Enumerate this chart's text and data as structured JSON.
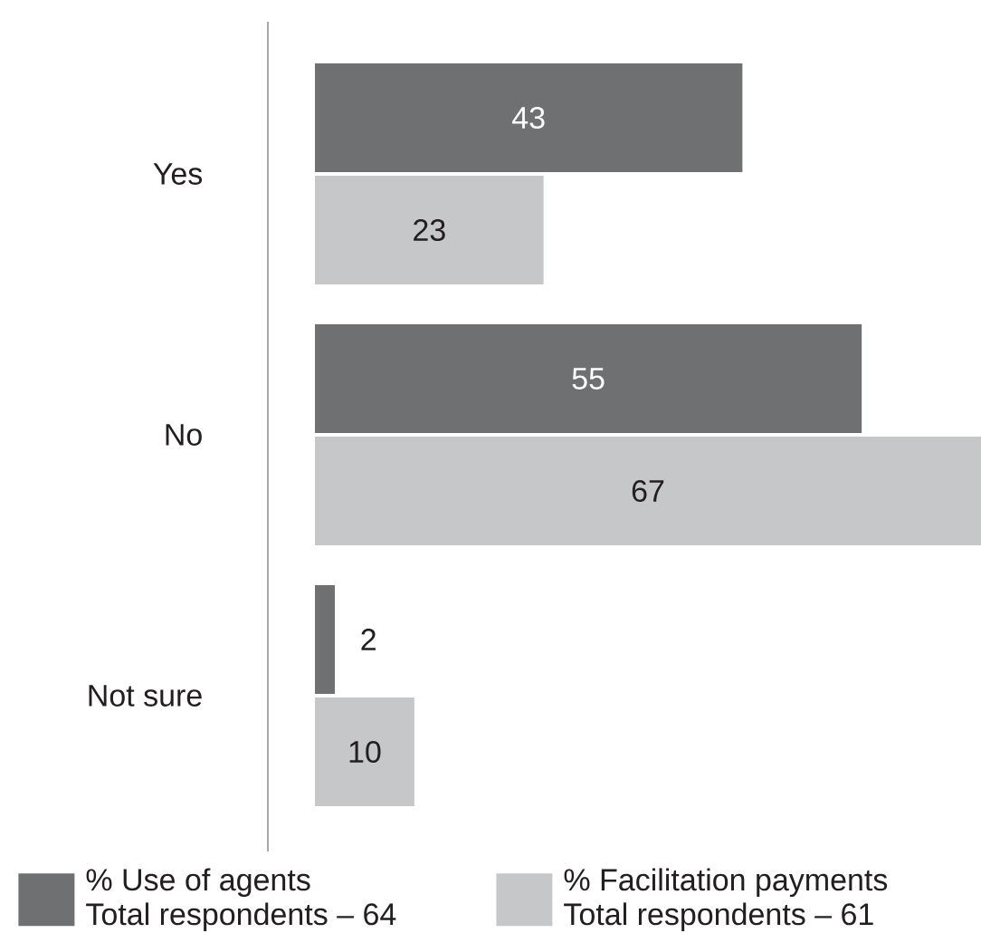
{
  "chart_data": {
    "type": "bar",
    "orientation": "horizontal",
    "categories": [
      "Yes",
      "No",
      "Not sure"
    ],
    "series": [
      {
        "name": "% Use of agents",
        "color": "#6f7072",
        "values": [
          43,
          55,
          2
        ]
      },
      {
        "name": "% Facilitation payments",
        "color": "#c6c7c9",
        "values": [
          23,
          67,
          10
        ]
      }
    ],
    "data_labels": true,
    "legend": "bottom",
    "annotations": [
      "Total respondents – 64",
      "Total respondents – 61"
    ]
  }
}
